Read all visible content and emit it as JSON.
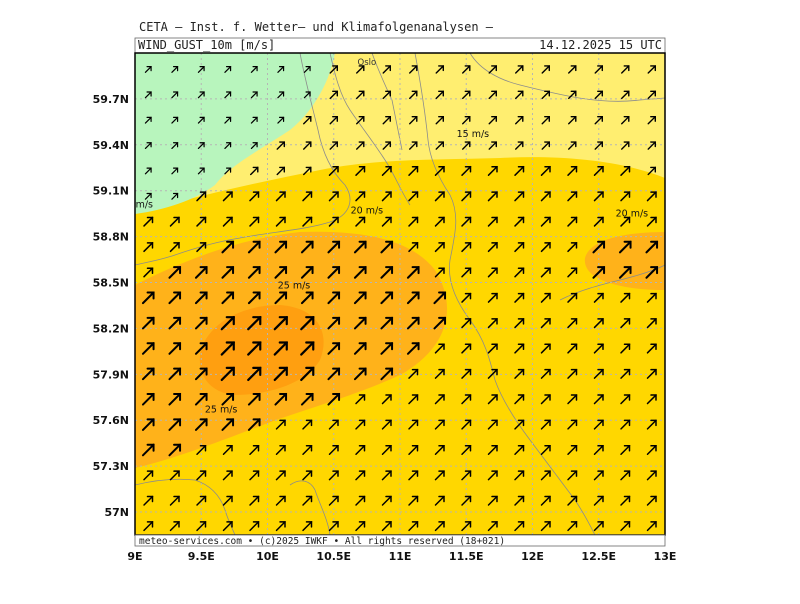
{
  "header": {
    "institution": "CETA — Inst. f. Wetter— und Klimafolgenanalysen —",
    "parameter": "WIND_GUST_10m [m/s]",
    "valid_time": "14.12.2025 15 UTC"
  },
  "footer": {
    "credit": "meteo-services.com • (c)2025 IWKF • All rights reserved (18+021)"
  },
  "map": {
    "lon_range": [
      9.0,
      13.0
    ],
    "lat_range": [
      56.85,
      60.0
    ],
    "lon_ticks": [
      {
        "value": 9.0,
        "label": "9E"
      },
      {
        "value": 9.5,
        "label": "9.5E"
      },
      {
        "value": 10.0,
        "label": "10E"
      },
      {
        "value": 10.5,
        "label": "10.5E"
      },
      {
        "value": 11.0,
        "label": "11E"
      },
      {
        "value": 11.5,
        "label": "11.5E"
      },
      {
        "value": 12.0,
        "label": "12E"
      },
      {
        "value": 12.5,
        "label": "12.5E"
      },
      {
        "value": 13.0,
        "label": "13E"
      }
    ],
    "lat_ticks": [
      {
        "value": 57.0,
        "label": "57N"
      },
      {
        "value": 57.3,
        "label": "57.3N"
      },
      {
        "value": 57.6,
        "label": "57.6N"
      },
      {
        "value": 57.9,
        "label": "57.9N"
      },
      {
        "value": 58.2,
        "label": "58.2N"
      },
      {
        "value": 58.5,
        "label": "58.5N"
      },
      {
        "value": 58.8,
        "label": "58.8N"
      },
      {
        "value": 59.1,
        "label": "59.1N"
      },
      {
        "value": 59.4,
        "label": "59.4N"
      },
      {
        "value": 59.7,
        "label": "59.7N"
      }
    ],
    "gridlines": "dotted",
    "wind_direction": "from southwest (arrows pointing north-east)",
    "wind_arrow_grid": {
      "columns": 20,
      "rows": 19
    },
    "colors": {
      "below_15": "#b8f5bd",
      "15_to_20": "#ffee70",
      "20_to_25": "#ffd700",
      "25_to_30": "#ffb21a",
      "above_30": "#ff9f10",
      "coastline": "#8c8c8c",
      "arrow": "#000000"
    },
    "contour_labels": [
      {
        "text": "15 m/s",
        "lon": 11.55,
        "lat": 59.45
      },
      {
        "text": "20 m/s",
        "lon": 10.75,
        "lat": 58.95
      },
      {
        "text": "20 m/s",
        "lon": 12.75,
        "lat": 58.93
      },
      {
        "text": "m/s",
        "lon": 9.07,
        "lat": 58.99
      },
      {
        "text": "25 m/s",
        "lon": 10.2,
        "lat": 58.46
      },
      {
        "text": "25 m/s",
        "lon": 9.65,
        "lat": 57.65
      }
    ],
    "place_labels": [
      {
        "text": "Oslo",
        "lon": 10.75,
        "lat": 59.92
      }
    ]
  }
}
